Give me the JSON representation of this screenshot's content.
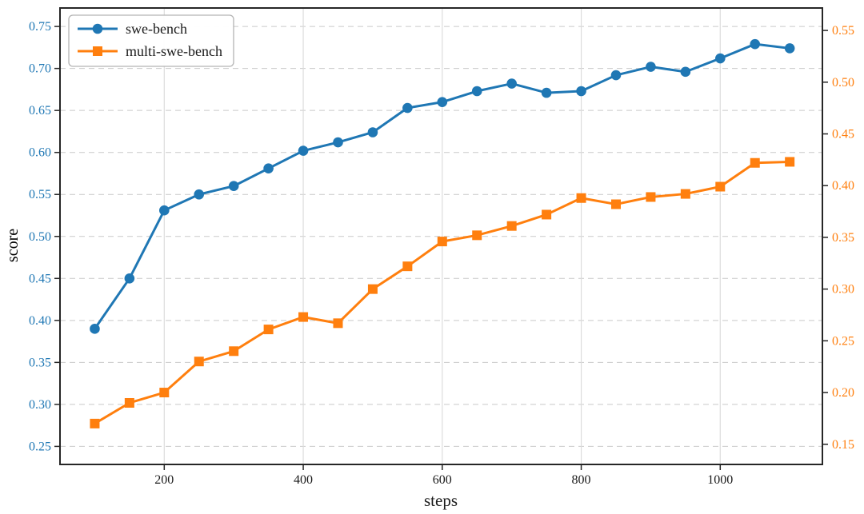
{
  "chart_data": {
    "type": "line",
    "title": "",
    "xlabel": "steps",
    "ylabel": "score",
    "ylabel_color": "#1f77b4",
    "x": [
      100,
      150,
      200,
      250,
      300,
      350,
      400,
      450,
      500,
      550,
      600,
      650,
      700,
      750,
      800,
      850,
      900,
      950,
      1000,
      1050,
      1100
    ],
    "series": [
      {
        "name": "swe-bench",
        "axis": "left",
        "color": "#1f77b4",
        "marker": "circle",
        "values": [
          0.39,
          0.45,
          0.531,
          0.55,
          0.56,
          0.581,
          0.602,
          0.612,
          0.624,
          0.653,
          0.66,
          0.673,
          0.682,
          0.671,
          0.673,
          0.692,
          0.702,
          0.696,
          0.712,
          0.729,
          0.724
        ]
      },
      {
        "name": "multi-swe-bench",
        "axis": "right",
        "color": "#ff7f0e",
        "marker": "square",
        "values": [
          0.17,
          0.19,
          0.2,
          0.23,
          0.24,
          0.261,
          0.273,
          0.267,
          0.3,
          0.322,
          0.346,
          0.352,
          0.361,
          0.372,
          0.388,
          0.382,
          0.389,
          0.392,
          0.399,
          0.422,
          0.423
        ]
      }
    ],
    "x_ticks": [
      200,
      400,
      600,
      800,
      1000
    ],
    "left_ticks": [
      0.25,
      0.3,
      0.35,
      0.4,
      0.45,
      0.5,
      0.55,
      0.6,
      0.65,
      0.7,
      0.75
    ],
    "right_ticks": [
      0.15,
      0.2,
      0.25,
      0.3,
      0.35,
      0.4,
      0.45,
      0.5,
      0.55
    ],
    "xlim": [
      50,
      1147
    ],
    "ylim_left": [
      0.2285,
      0.772
    ],
    "ylim_right": [
      0.1305,
      0.5717
    ],
    "grid": {
      "horizontal": "dashed",
      "vertical": "solid"
    },
    "legend": {
      "position": "upper-left",
      "entries": [
        "swe-bench",
        "multi-swe-bench"
      ]
    },
    "colors": {
      "left_axis_text": "#1f77b4",
      "right_axis_text": "#ff7f0e",
      "x_axis_text": "#1a1a1a",
      "spine": "#262626",
      "h_grid": "#c9c9c9",
      "v_grid": "#dcdcdc",
      "legend_border": "#b3b3b3",
      "legend_bg": "#ffffff"
    }
  }
}
